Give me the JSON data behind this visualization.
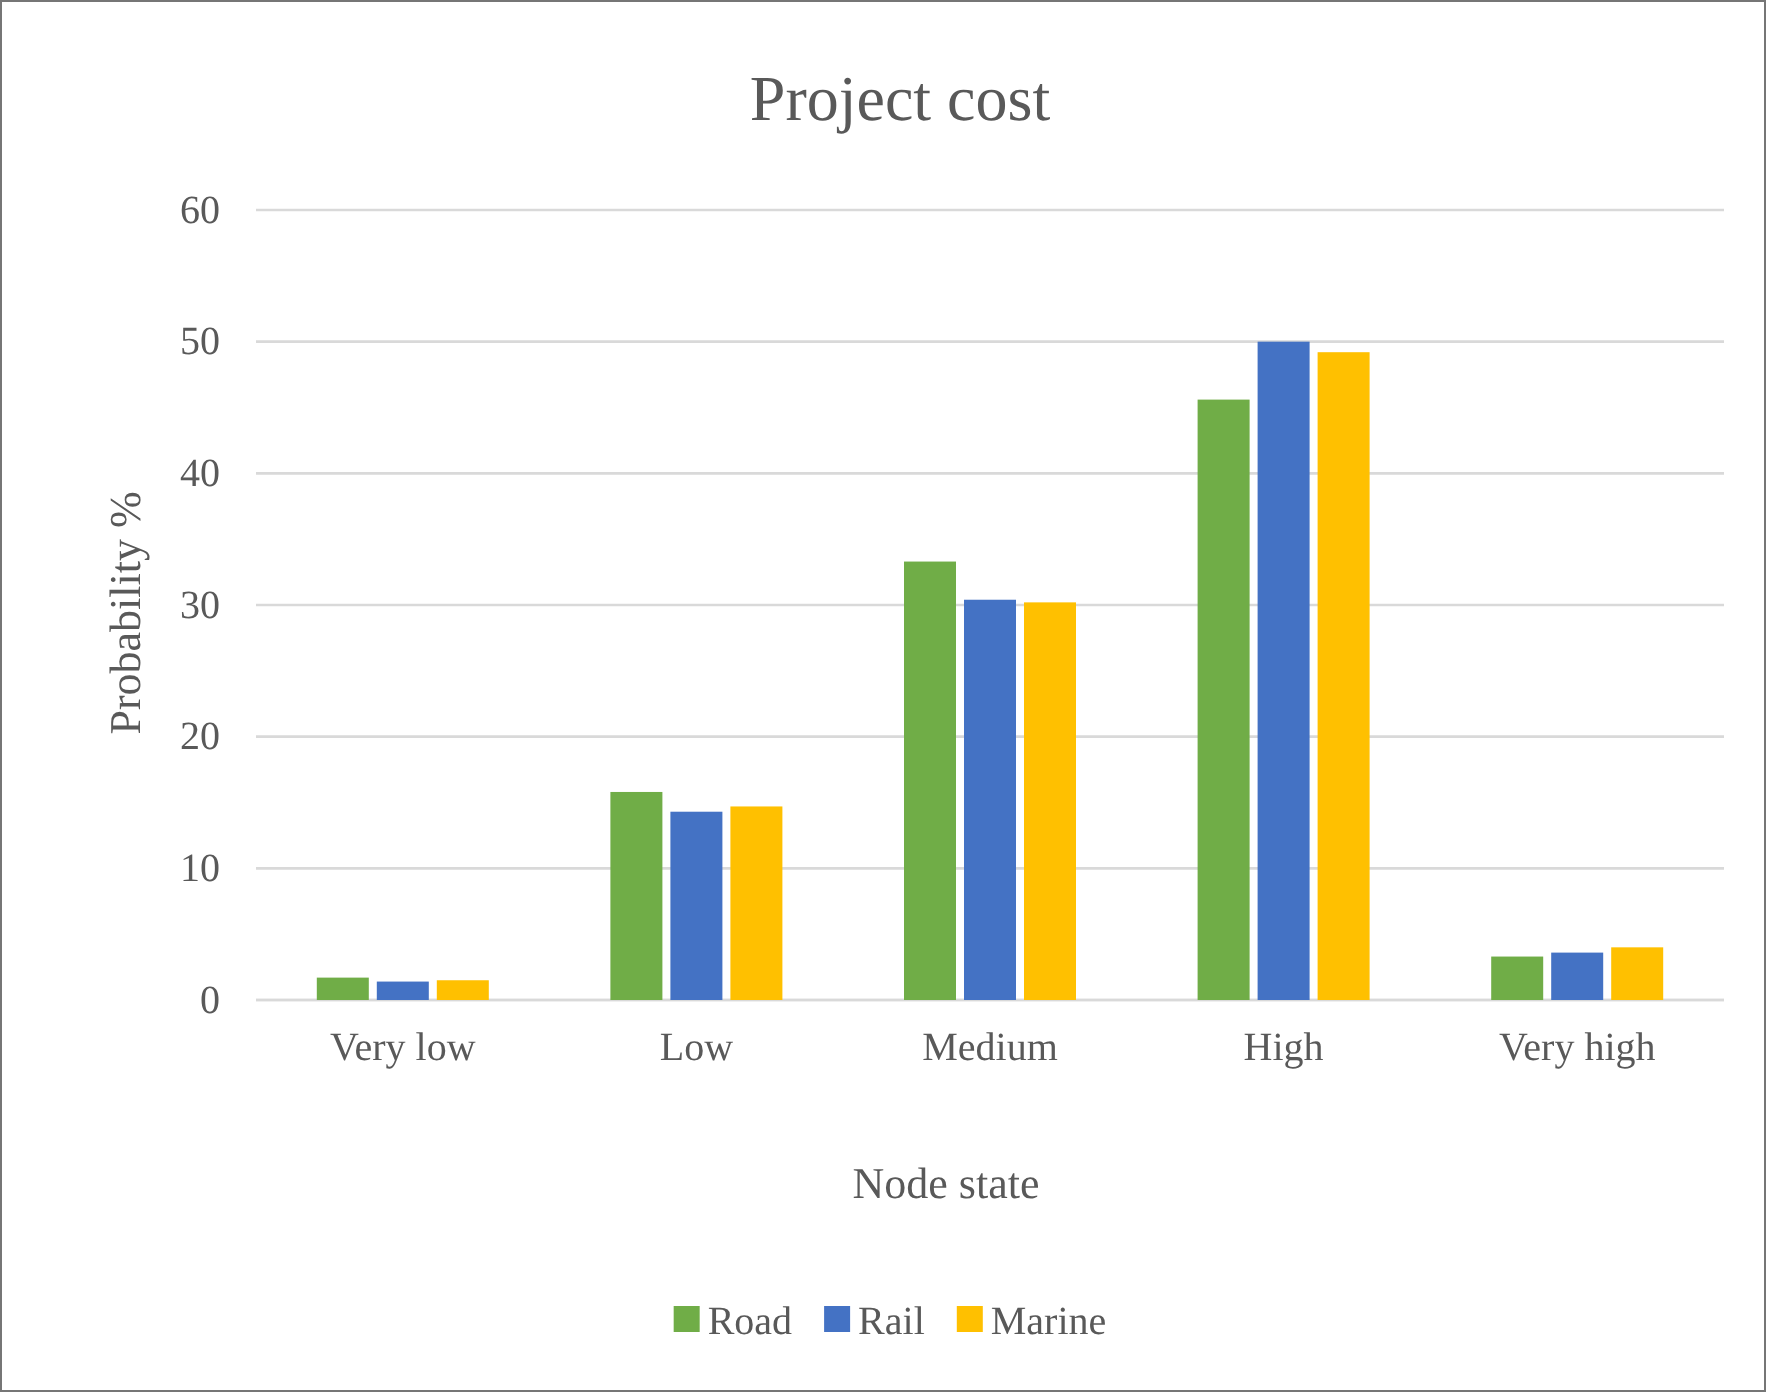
{
  "chart_data": {
    "type": "bar",
    "title": "Project cost",
    "xlabel": "Node state",
    "ylabel": "Probability %",
    "categories": [
      "Very low",
      "Low",
      "Medium",
      "High",
      "Very high"
    ],
    "series": [
      {
        "name": "Road",
        "color": "#70ad47",
        "values": [
          1.7,
          15.8,
          33.3,
          45.6,
          3.3
        ]
      },
      {
        "name": "Rail",
        "color": "#4472c4",
        "values": [
          1.4,
          14.3,
          30.4,
          50.0,
          3.6
        ]
      },
      {
        "name": "Marine",
        "color": "#ffc000",
        "values": [
          1.5,
          14.7,
          30.2,
          49.2,
          4.0
        ]
      }
    ],
    "ylim": [
      0,
      60
    ],
    "yticks": [
      0,
      10,
      20,
      30,
      40,
      50,
      60
    ],
    "grid": "y",
    "legend": "bottom"
  }
}
